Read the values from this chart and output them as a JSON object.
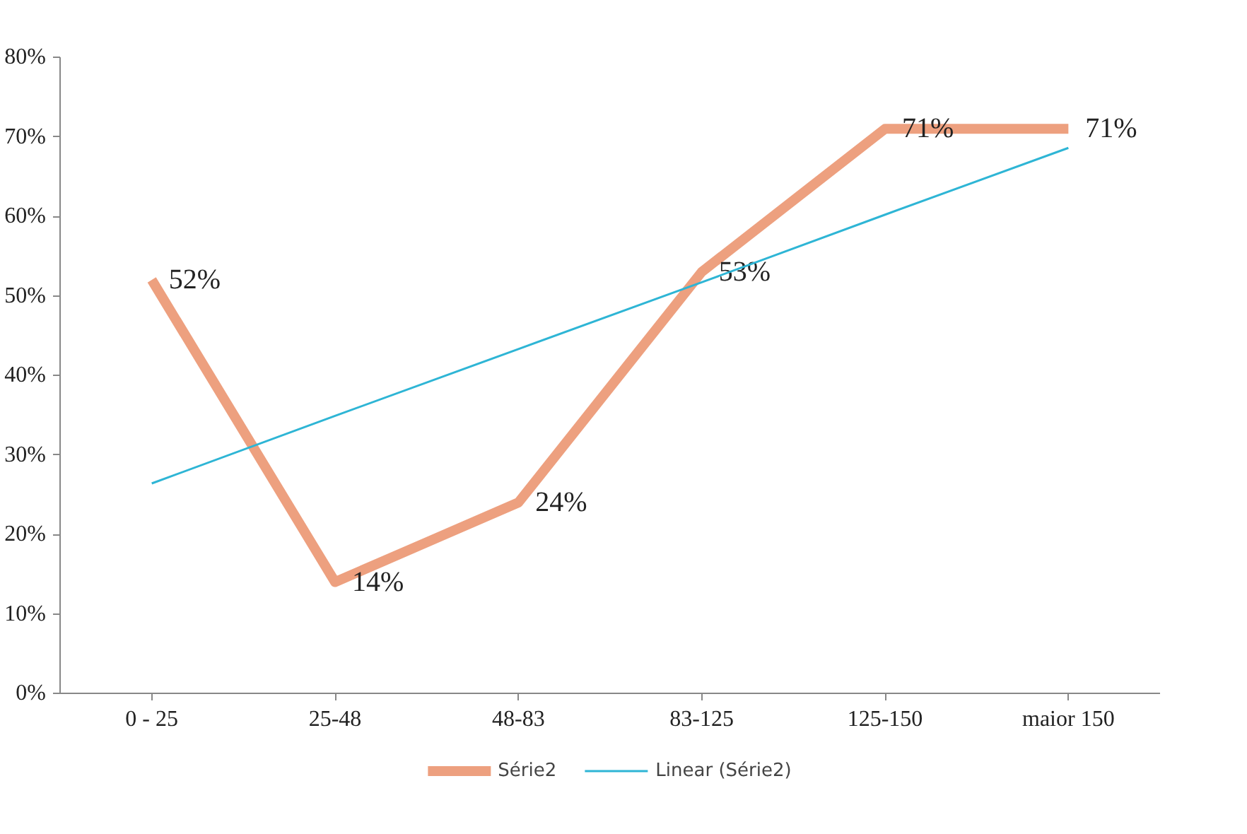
{
  "chart_data": {
    "type": "line",
    "categories": [
      "0 - 25",
      "25-48",
      "48-83",
      "83-125",
      "125-150",
      "maior 150"
    ],
    "series": [
      {
        "name": "Série2",
        "color": "#eda07f",
        "values": [
          52,
          14,
          24,
          53,
          71,
          71
        ],
        "value_labels": [
          "52%",
          "14%",
          "24%",
          "53%",
          "71%",
          "71%"
        ]
      },
      {
        "name": "Linear (Série2)",
        "color": "#2eb5d5",
        "values": [
          26.4,
          34.9,
          43.3,
          51.7,
          60.2,
          68.6
        ]
      }
    ],
    "ylim": [
      0,
      80
    ],
    "yticks": [
      {
        "value": 0,
        "label": "0%"
      },
      {
        "value": 10,
        "label": "10%"
      },
      {
        "value": 20,
        "label": "20%"
      },
      {
        "value": 30,
        "label": "30%"
      },
      {
        "value": 40,
        "label": "40%"
      },
      {
        "value": 50,
        "label": "50%"
      },
      {
        "value": 60,
        "label": "60%"
      },
      {
        "value": 70,
        "label": "70%"
      },
      {
        "value": 80,
        "label": "80%"
      }
    ],
    "grid": false,
    "legend": "bottom",
    "marker": "none",
    "line_style": "solid"
  }
}
